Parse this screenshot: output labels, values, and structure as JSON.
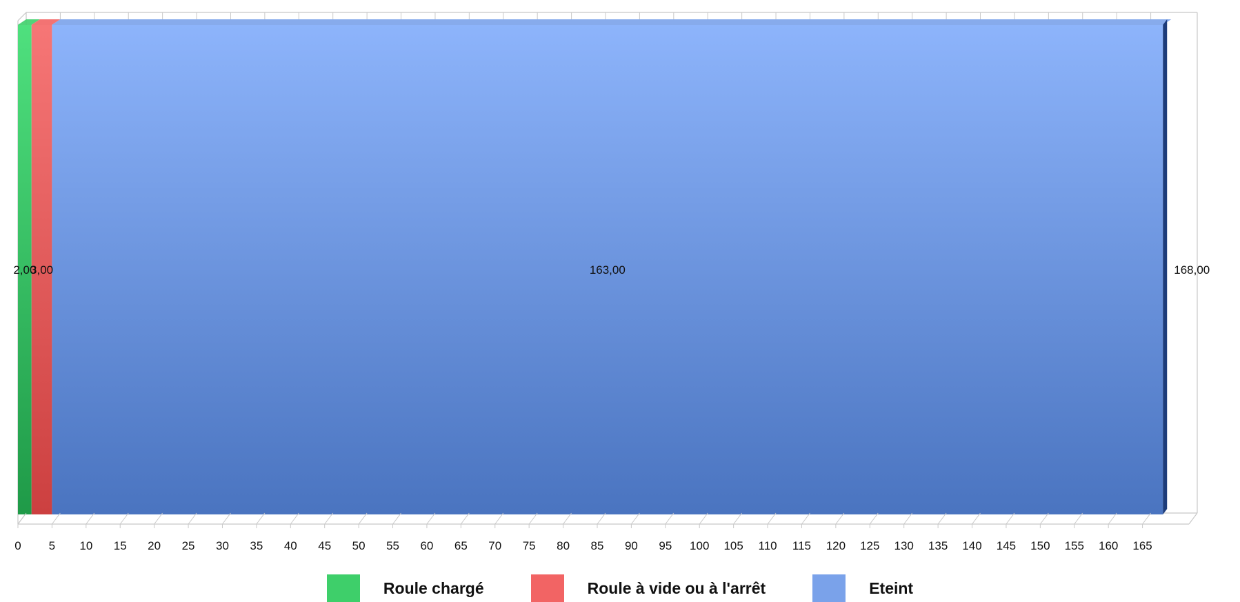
{
  "chart_data": {
    "type": "bar",
    "orientation": "horizontal",
    "stacked": true,
    "three_d": true,
    "categories": [
      ""
    ],
    "series": [
      {
        "name": "Roule chargé",
        "values": [
          2.0
        ],
        "label": "2,00",
        "color": "#3ecf6a"
      },
      {
        "name": "Roule à vide ou à l'arrêt",
        "values": [
          3.0
        ],
        "label": "3,00",
        "color": "#f26464"
      },
      {
        "name": "Eteint",
        "values": [
          163.0
        ],
        "label": "163,00",
        "color": "#7aa2ea"
      }
    ],
    "total": {
      "value": 168.0,
      "label": "168,00"
    },
    "xlim": [
      0,
      170
    ],
    "x_ticks": [
      0,
      5,
      10,
      15,
      20,
      25,
      30,
      35,
      40,
      45,
      50,
      55,
      60,
      65,
      70,
      75,
      80,
      85,
      90,
      95,
      100,
      105,
      110,
      115,
      120,
      125,
      130,
      135,
      140,
      145,
      150,
      155,
      160,
      165
    ],
    "title": "",
    "xlabel": "",
    "ylabel": "",
    "grid": false,
    "legend": "bottom"
  }
}
